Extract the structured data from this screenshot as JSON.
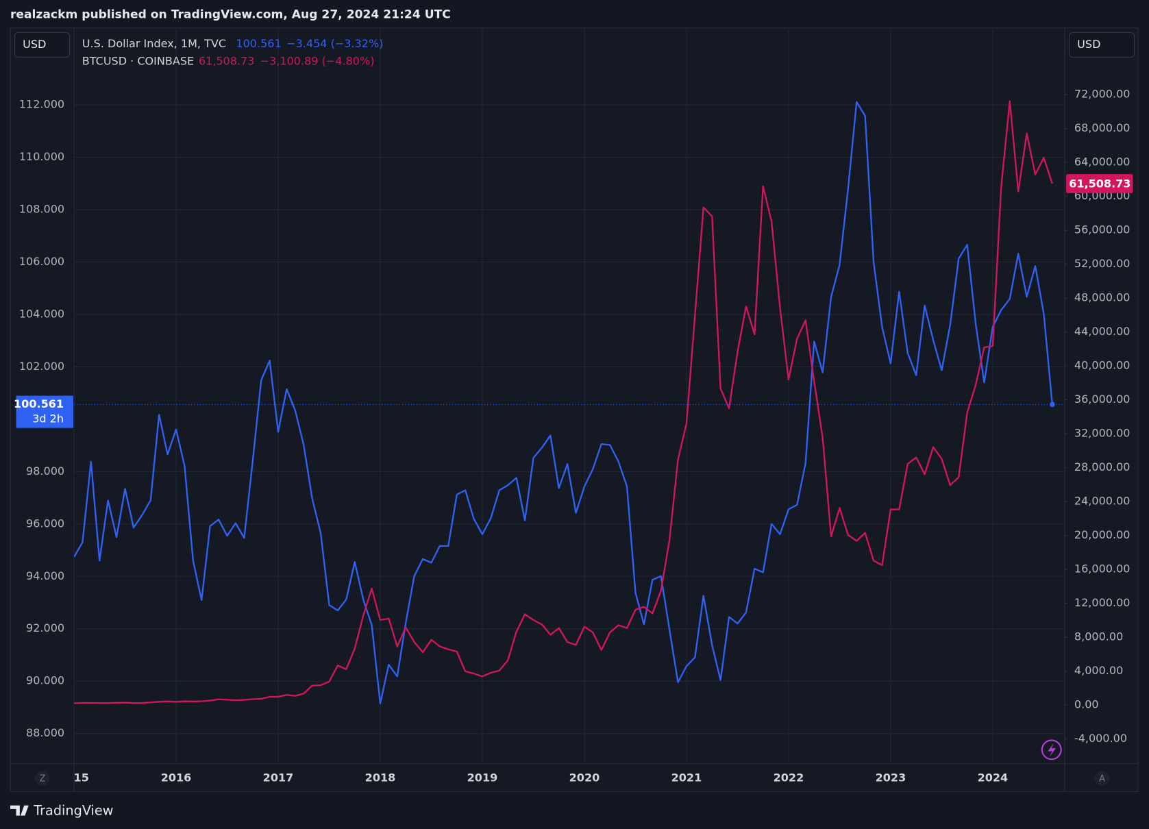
{
  "header": "realzackm published on TradingView.com, Aug 27, 2024 21:24 UTC",
  "left_currency": "USD",
  "right_currency": "USD",
  "left_button": "Z",
  "right_button": "A",
  "brand": "TradingView",
  "chart_data": {
    "type": "line",
    "categories": [
      "15",
      null,
      null,
      null,
      null,
      null,
      null,
      null,
      null,
      null,
      null,
      null,
      "2016",
      null,
      null,
      null,
      null,
      null,
      null,
      null,
      null,
      null,
      null,
      null,
      "2017",
      null,
      null,
      null,
      null,
      null,
      null,
      null,
      null,
      null,
      null,
      null,
      "2018",
      null,
      null,
      null,
      null,
      null,
      null,
      null,
      null,
      null,
      null,
      null,
      "2019",
      null,
      null,
      null,
      null,
      null,
      null,
      null,
      null,
      null,
      null,
      null,
      "2020",
      null,
      null,
      null,
      null,
      null,
      null,
      null,
      null,
      null,
      null,
      null,
      "2021",
      null,
      null,
      null,
      null,
      null,
      null,
      null,
      null,
      null,
      null,
      null,
      "2022",
      null,
      null,
      null,
      null,
      null,
      null,
      null,
      null,
      null,
      null,
      null,
      "2023",
      null,
      null,
      null,
      null,
      null,
      null,
      null,
      null,
      null,
      null,
      null,
      "2024",
      null,
      null,
      null,
      null,
      null,
      null,
      null
    ],
    "series": [
      {
        "name": "U.S. Dollar Index, 1M, TVC",
        "color": "#2f62f2",
        "axis": "y",
        "last": "100.561",
        "change": "−3.454 (−3.32%)",
        "countdown": "3d 2h",
        "values": [
          94.74,
          95.3,
          98.38,
          94.6,
          96.9,
          95.5,
          97.34,
          95.86,
          96.34,
          96.9,
          100.17,
          98.66,
          99.61,
          98.21,
          94.6,
          93.09,
          95.92,
          96.17,
          95.55,
          96.03,
          95.47,
          98.38,
          101.48,
          102.24,
          99.52,
          101.15,
          100.34,
          99.02,
          96.98,
          95.64,
          92.9,
          92.7,
          93.12,
          94.55,
          93.12,
          92.14,
          89.15,
          90.63,
          90.18,
          92.22,
          94.01,
          94.66,
          94.52,
          95.16,
          95.16,
          97.12,
          97.29,
          96.2,
          95.61,
          96.22,
          97.29,
          97.48,
          97.76,
          96.14,
          98.52,
          98.91,
          99.38,
          97.37,
          98.29,
          96.42,
          97.43,
          98.1,
          99.05,
          99.02,
          98.38,
          97.43,
          93.37,
          92.17,
          93.87,
          94.01,
          91.97,
          89.96,
          90.57,
          90.91,
          93.26,
          91.38,
          90.04,
          92.45,
          92.2,
          92.62,
          94.29,
          94.15,
          96.0,
          95.61,
          96.56,
          96.73,
          98.32,
          102.97,
          101.79,
          104.67,
          105.9,
          108.81,
          112.11,
          111.58,
          105.99,
          103.52,
          102.13,
          104.87,
          102.52,
          101.68,
          104.34,
          103.02,
          101.87,
          103.61,
          106.13,
          106.66,
          103.64,
          101.4,
          103.52,
          104.17,
          104.59,
          106.32,
          104.67,
          105.85,
          104.03,
          100.561
        ]
      },
      {
        "name": "BTCUSD · COINBASE",
        "color": "#d2165e",
        "axis": "y2",
        "last": "61,508.73",
        "change": "−3,100.89 (−4.80%)",
        "values": [
          217,
          254,
          244,
          236,
          230,
          263,
          284,
          230,
          236,
          314,
          378,
          430,
          369,
          437,
          416,
          448,
          531,
          673,
          624,
          574,
          609,
          700,
          745,
          964,
          970,
          1190,
          1080,
          1350,
          2300,
          2334,
          2766,
          4670,
          4236,
          6650,
          10545,
          13744,
          10027,
          10200,
          6915,
          9162,
          7434,
          6224,
          7693,
          6915,
          6570,
          6310,
          3976,
          3717,
          3371,
          3803,
          4063,
          5273,
          8644,
          10718,
          10027,
          9508,
          8298,
          9076,
          7434,
          7088,
          9249,
          8557,
          6483,
          8557,
          9422,
          9076,
          11237,
          11583,
          10805,
          13484,
          19449,
          28956,
          33192,
          45985,
          58691,
          57654,
          37341,
          35007,
          41663,
          47022,
          43738,
          61198,
          57049,
          46850,
          38379,
          43219,
          45380,
          38206,
          31550,
          19881,
          23252,
          20054,
          19362,
          20313,
          17028,
          16510,
          23079,
          23079,
          28438,
          29216,
          27228,
          30426,
          29043,
          25931,
          26882,
          34489,
          37773,
          42182,
          42355,
          61112,
          71225,
          60593,
          67422,
          62581,
          64569,
          61508.73
        ]
      }
    ],
    "ylim": [
      86.85,
      114.88
    ],
    "yticks": [
      {
        "value": 88,
        "label": "88.000"
      },
      {
        "value": 90,
        "label": "90.000"
      },
      {
        "value": 92,
        "label": "92.000"
      },
      {
        "value": 94,
        "label": "94.000"
      },
      {
        "value": 96,
        "label": "96.000"
      },
      {
        "value": 98,
        "label": "98.000"
      },
      {
        "value": 102,
        "label": "102.000"
      },
      {
        "value": 104,
        "label": "104.000"
      },
      {
        "value": 106,
        "label": "106.000"
      },
      {
        "value": 108,
        "label": "108.000"
      },
      {
        "value": 110,
        "label": "110.000"
      },
      {
        "value": 112,
        "label": "112.000"
      }
    ],
    "y2lim": [
      -6915,
      79696
    ],
    "y2ticks": [
      {
        "value": -4000,
        "label": "-4,000.00"
      },
      {
        "value": 0,
        "label": "0.00"
      },
      {
        "value": 4000,
        "label": "4,000.00"
      },
      {
        "value": 8000,
        "label": "8,000.00"
      },
      {
        "value": 12000,
        "label": "12,000.00"
      },
      {
        "value": 16000,
        "label": "16,000.00"
      },
      {
        "value": 20000,
        "label": "20,000.00"
      },
      {
        "value": 24000,
        "label": "24,000.00"
      },
      {
        "value": 28000,
        "label": "28,000.00"
      },
      {
        "value": 32000,
        "label": "32,000.00"
      },
      {
        "value": 36000,
        "label": "36,000.00"
      },
      {
        "value": 40000,
        "label": "40,000.00"
      },
      {
        "value": 44000,
        "label": "44,000.00"
      },
      {
        "value": 48000,
        "label": "48,000.00"
      },
      {
        "value": 52000,
        "label": "52,000.00"
      },
      {
        "value": 56000,
        "label": "56,000.00"
      },
      {
        "value": 60000,
        "label": "60,000.00"
      },
      {
        "value": 64000,
        "label": "64,000.00"
      },
      {
        "value": 68000,
        "label": "68,000.00"
      },
      {
        "value": 72000,
        "label": "72,000.00"
      }
    ],
    "grid": true
  }
}
